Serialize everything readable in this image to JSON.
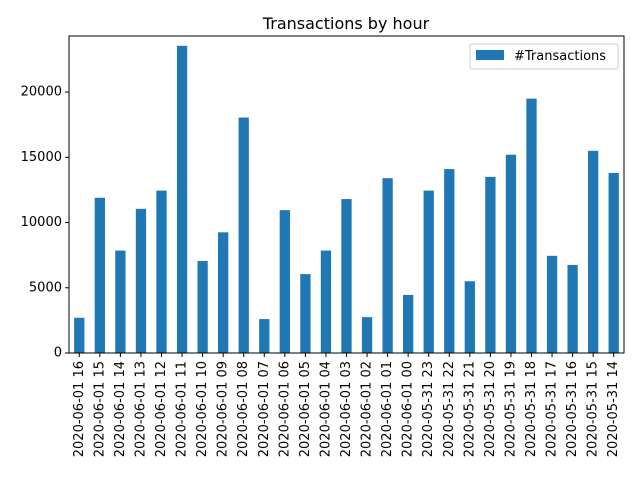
{
  "chart_data": {
    "type": "bar",
    "title": "Transactions by hour",
    "xlabel": "",
    "ylabel": "",
    "categories": [
      "2020-06-01 16",
      "2020-06-01 15",
      "2020-06-01 14",
      "2020-06-01 13",
      "2020-06-01 12",
      "2020-06-01 11",
      "2020-06-01 10",
      "2020-06-01 09",
      "2020-06-01 08",
      "2020-06-01 07",
      "2020-06-01 06",
      "2020-06-01 05",
      "2020-06-01 04",
      "2020-06-01 03",
      "2020-06-01 02",
      "2020-06-01 01",
      "2020-06-01 00",
      "2020-05-31 23",
      "2020-05-31 22",
      "2020-05-31 21",
      "2020-05-31 20",
      "2020-05-31 19",
      "2020-05-31 18",
      "2020-05-31 17",
      "2020-05-31 16",
      "2020-05-31 15",
      "2020-05-31 14"
    ],
    "series": [
      {
        "name": "#Transactions",
        "color": "#1f77b4",
        "values": [
          2700,
          11900,
          7850,
          11050,
          12450,
          23550,
          7050,
          9250,
          18050,
          2600,
          10950,
          6050,
          7850,
          11800,
          2750,
          13400,
          4450,
          12450,
          14100,
          5500,
          13500,
          15200,
          19500,
          7450,
          6750,
          15500,
          13800
        ]
      }
    ],
    "ylim": [
      0,
      24300
    ],
    "yticks": [
      0,
      5000,
      10000,
      15000,
      20000
    ],
    "ytick_labels": [
      "0",
      "5000",
      "10000",
      "15000",
      "20000"
    ],
    "legend_position": "top-right",
    "grid": false
  }
}
